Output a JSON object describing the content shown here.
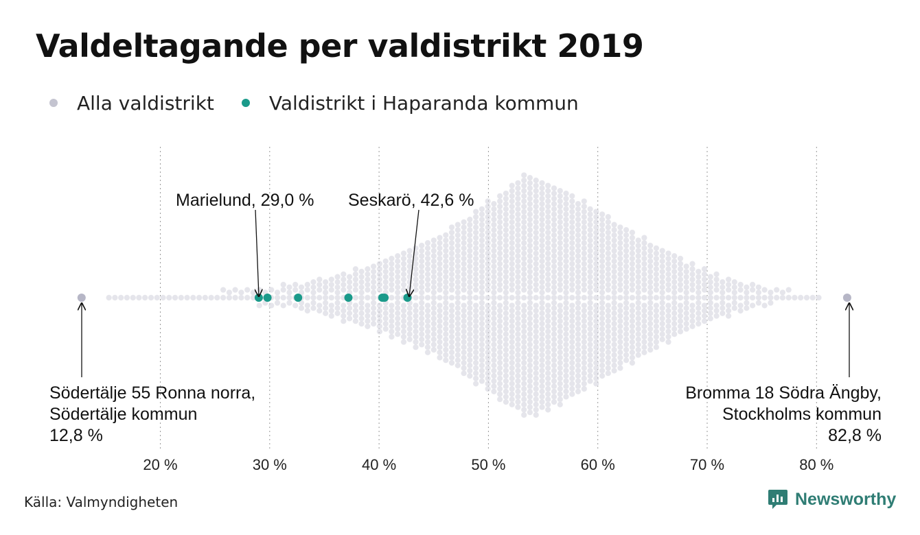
{
  "title": "Valdeltagande per valdistrikt 2019",
  "legend": [
    {
      "label": "Alla valdistrikt",
      "color": "#c4c4d0"
    },
    {
      "label": "Valdistrikt i Haparanda kommun",
      "color": "#1a9a8a"
    }
  ],
  "source": "Källa: Valmyndigheten",
  "brand": {
    "name": "Newsworthy",
    "color": "#2f7d74",
    "icon": "newsworthy-logo-icon"
  },
  "colors": {
    "all": "#cfcfda",
    "haparanda": "#1a9a8a",
    "extreme": "#b6b6c6"
  },
  "chart_data": {
    "type": "scatter",
    "subtype": "beeswarm",
    "xlim": [
      13,
      83
    ],
    "x_ticks": [
      20,
      30,
      40,
      50,
      60,
      70,
      80
    ],
    "x_tick_labels": [
      "20 %",
      "30 %",
      "40 %",
      "50 %",
      "60 %",
      "70 %",
      "80 %"
    ],
    "grid": "vertical-dotted",
    "legend_position": "top-left",
    "series": [
      {
        "name": "Alla valdistrikt",
        "distribution_points": [
          [
            12.8,
            1
          ],
          [
            16,
            1
          ],
          [
            17,
            1
          ],
          [
            19,
            2
          ],
          [
            20,
            3
          ],
          [
            22,
            5
          ],
          [
            24,
            10
          ],
          [
            26,
            16
          ],
          [
            28,
            22
          ],
          [
            30,
            30
          ],
          [
            32,
            40
          ],
          [
            34,
            56
          ],
          [
            36,
            76
          ],
          [
            38,
            100
          ],
          [
            40,
            128
          ],
          [
            42,
            162
          ],
          [
            44,
            200
          ],
          [
            46,
            245
          ],
          [
            48,
            300
          ],
          [
            50,
            360
          ],
          [
            52,
            420
          ],
          [
            53.5,
            470
          ],
          [
            55,
            440
          ],
          [
            57,
            400
          ],
          [
            59,
            350
          ],
          [
            61,
            300
          ],
          [
            63,
            250
          ],
          [
            65,
            200
          ],
          [
            67,
            155
          ],
          [
            69,
            115
          ],
          [
            71,
            80
          ],
          [
            73,
            52
          ],
          [
            75,
            32
          ],
          [
            77,
            18
          ],
          [
            79,
            10
          ],
          [
            81,
            5
          ],
          [
            82.8,
            1
          ]
        ]
      },
      {
        "name": "Valdistrikt i Haparanda kommun",
        "x": [
          29.0,
          29.8,
          32.6,
          37.2,
          40.3,
          40.5,
          42.6
        ]
      }
    ],
    "annotations": [
      {
        "label": "Marielund, 29,0 %",
        "x": 29.0
      },
      {
        "label": "Seskarö, 42,6 %",
        "x": 42.6
      },
      {
        "lines": [
          "Södertälje 55 Ronna norra,",
          "Södertälje kommun",
          "12,8 %"
        ],
        "x": 12.8
      },
      {
        "lines": [
          "Bromma 18 Södra Ängby,",
          "Stockholms kommun",
          "82,8 %"
        ],
        "x": 82.8
      }
    ]
  }
}
